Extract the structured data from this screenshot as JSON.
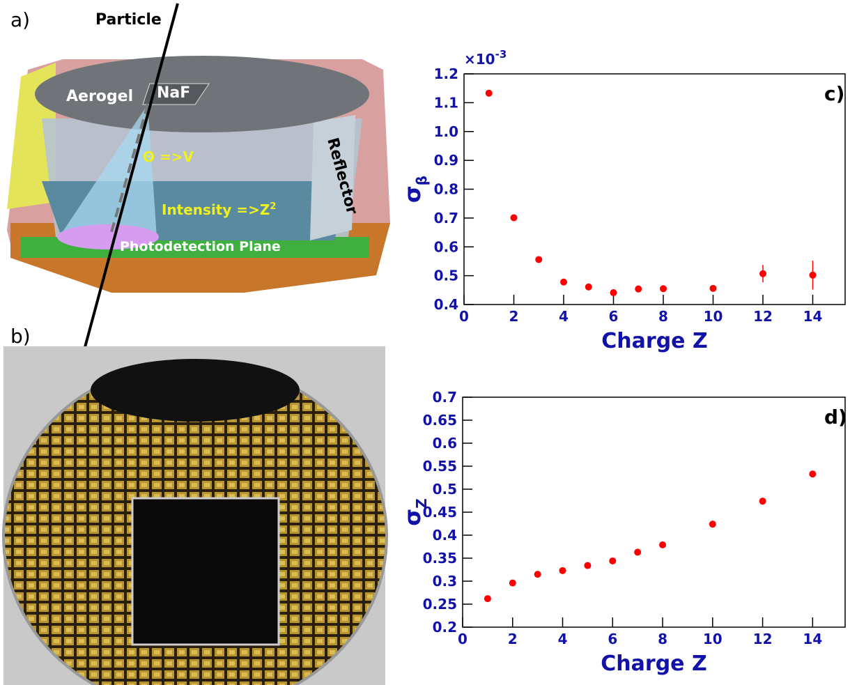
{
  "diagram": {
    "label": "a)",
    "particle": "Particle",
    "aerogel": "Aerogel",
    "naf": "NaF",
    "theta": "Θ =>V",
    "reflector": "Reflector",
    "intensity": "Intensity =>Z",
    "intensity_sup": "2",
    "plane": "Photodetection Plane"
  },
  "photo": {
    "label": "b)"
  },
  "chart_data": [
    {
      "type": "scatter",
      "panel_label": "c)",
      "x_label": "Charge Z",
      "y_label": "σ",
      "y_label_sub": "β",
      "y_multiplier": "×10",
      "y_multiplier_exp": "-3",
      "x": [
        1,
        2,
        3,
        4,
        5,
        6,
        7,
        8,
        10,
        12,
        14
      ],
      "series": [
        {
          "color": "#ff0000",
          "values": [
            1.133,
            0.701,
            0.556,
            0.478,
            0.461,
            0.441,
            0.454,
            0.455,
            0.456,
            0.507,
            0.502
          ],
          "errors": [
            0.004,
            0.004,
            0.006,
            0.01,
            0.005,
            0.005,
            0.005,
            0.005,
            0.008,
            0.03,
            0.05
          ]
        }
      ],
      "xlim": [
        0,
        15.3
      ],
      "ylim": [
        0.4,
        1.2
      ],
      "xticks": [
        0,
        2,
        4,
        6,
        8,
        10,
        12,
        14
      ],
      "yticks": [
        0.4,
        0.5,
        0.6,
        0.7,
        0.8,
        0.9,
        {
          "value": 1,
          "label": "1.0"
        },
        1.1,
        1.2
      ]
    },
    {
      "type": "scatter",
      "panel_label": "d)",
      "x_label": "Charge Z",
      "y_label": "σ",
      "y_label_sub": "Z",
      "x": [
        1,
        2,
        3,
        4,
        5,
        6,
        7,
        8,
        10,
        12,
        14
      ],
      "series": [
        {
          "color": "#ff0000",
          "values": [
            0.262,
            0.296,
            0.315,
            0.323,
            0.334,
            0.344,
            0.363,
            0.379,
            0.424,
            0.474,
            0.533
          ]
        }
      ],
      "xlim": [
        0,
        15.3
      ],
      "ylim": [
        0.2,
        0.7
      ],
      "xticks": [
        0,
        2,
        4,
        6,
        8,
        10,
        12,
        14
      ],
      "yticks": [
        0.2,
        0.25,
        0.3,
        0.35,
        0.4,
        0.45,
        0.5,
        0.55,
        0.6,
        0.65,
        0.7
      ]
    }
  ]
}
